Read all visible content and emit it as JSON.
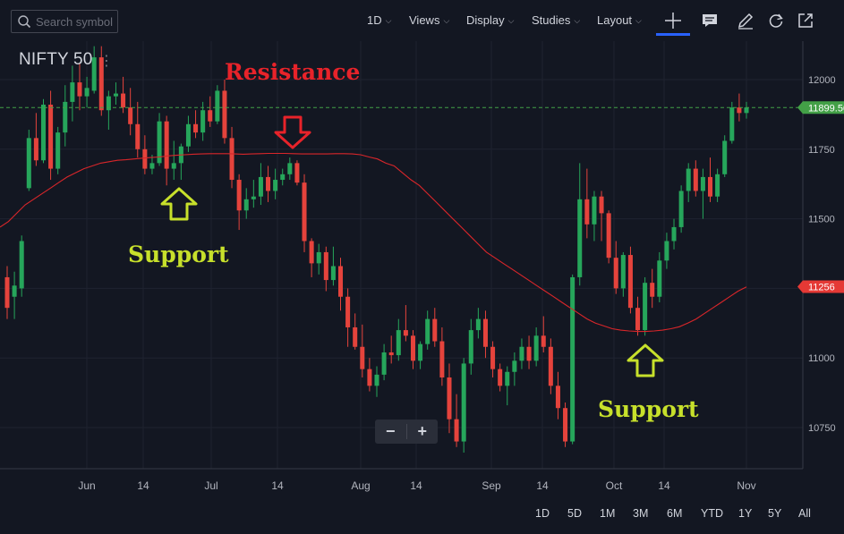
{
  "toolbar": {
    "search_placeholder": "Search symbol",
    "interval": "1D",
    "views": "Views",
    "display": "Display",
    "studies": "Studies",
    "layout": "Layout"
  },
  "icons": [
    "search-icon",
    "crosshair-icon",
    "comment-icon",
    "pencil-icon",
    "refresh-icon",
    "popout-icon",
    "chevron-down-icon"
  ],
  "colors": {
    "up": "#26a65b",
    "down": "#e5433c",
    "ma": "#d9262a",
    "price_tag": "#43a047",
    "ma_tag": "#e53935",
    "support": "#c7e02b",
    "resistance": "#e8232a"
  },
  "annotations": {
    "resistance": "Resistance",
    "support_1": "Support",
    "support_2": "Support"
  },
  "zoom": {
    "minus": "−",
    "plus": "+"
  },
  "ranges": [
    "1D",
    "5D",
    "1M",
    "3M",
    "6M",
    "YTD",
    "1Y",
    "5Y",
    "All"
  ],
  "chart_data": {
    "type": "candlestick",
    "symbol": "NIFTY 50",
    "y_ticks": [
      12000,
      11750,
      11500,
      11250,
      11000,
      10750
    ],
    "ylim": [
      10610,
      12140
    ],
    "x_ticks": [
      "Jun",
      "14",
      "Jul",
      "14",
      "Aug",
      "14",
      "Sep",
      "14",
      "Oct",
      "14",
      "Nov"
    ],
    "last_price": "11899.50",
    "last_price_value": 11899.5,
    "ma_value_label": "11256",
    "ma_value": 11256,
    "grid": true,
    "candles": [
      [
        11290,
        11330,
        11140,
        11180
      ],
      [
        11220,
        11310,
        11140,
        11260
      ],
      [
        11250,
        11440,
        11220,
        11420
      ],
      [
        11610,
        11820,
        11600,
        11790
      ],
      [
        11790,
        11880,
        11690,
        11710
      ],
      [
        11710,
        11930,
        11700,
        11910
      ],
      [
        11910,
        11960,
        11640,
        11680
      ],
      [
        11680,
        11830,
        11660,
        11810
      ],
      [
        11810,
        11980,
        11760,
        11920
      ],
      [
        11920,
        12050,
        11850,
        11990
      ],
      [
        11990,
        12060,
        11890,
        11940
      ],
      [
        11940,
        12010,
        11900,
        11970
      ],
      [
        11960,
        12120,
        11950,
        12080
      ],
      [
        12080,
        12120,
        11870,
        11890
      ],
      [
        11890,
        11960,
        11820,
        11940
      ],
      [
        11940,
        11990,
        11910,
        11950
      ],
      [
        11950,
        12010,
        11880,
        11900
      ],
      [
        11900,
        11970,
        11800,
        11840
      ],
      [
        11840,
        11920,
        11720,
        11750
      ],
      [
        11750,
        11800,
        11660,
        11680
      ],
      [
        11680,
        11730,
        11660,
        11700
      ],
      [
        11700,
        11880,
        11690,
        11850
      ],
      [
        11850,
        11870,
        11620,
        11680
      ],
      [
        11680,
        11780,
        11640,
        11700
      ],
      [
        11700,
        11770,
        11640,
        11760
      ],
      [
        11760,
        11870,
        11740,
        11840
      ],
      [
        11840,
        11890,
        11790,
        11810
      ],
      [
        11810,
        11920,
        11780,
        11890
      ],
      [
        11890,
        11940,
        11830,
        11850
      ],
      [
        11850,
        11980,
        11840,
        11960
      ],
      [
        11960,
        12000,
        11770,
        11790
      ],
      [
        11790,
        11830,
        11610,
        11640
      ],
      [
        11640,
        11660,
        11460,
        11530
      ],
      [
        11530,
        11610,
        11500,
        11570
      ],
      [
        11570,
        11640,
        11540,
        11580
      ],
      [
        11580,
        11700,
        11550,
        11650
      ],
      [
        11650,
        11690,
        11560,
        11600
      ],
      [
        11600,
        11680,
        11570,
        11640
      ],
      [
        11640,
        11680,
        11620,
        11660
      ],
      [
        11660,
        11720,
        11640,
        11700
      ],
      [
        11700,
        11710,
        11620,
        11630
      ],
      [
        11630,
        11660,
        11380,
        11420
      ],
      [
        11420,
        11430,
        11290,
        11340
      ],
      [
        11340,
        11410,
        11300,
        11380
      ],
      [
        11380,
        11400,
        11240,
        11280
      ],
      [
        11280,
        11400,
        11260,
        11330
      ],
      [
        11330,
        11360,
        11170,
        11220
      ],
      [
        11220,
        11250,
        11040,
        11110
      ],
      [
        11110,
        11160,
        11030,
        11040
      ],
      [
        11040,
        11120,
        10930,
        10960
      ],
      [
        10960,
        11000,
        10880,
        10900
      ],
      [
        10900,
        10970,
        10860,
        10940
      ],
      [
        10940,
        11050,
        10920,
        11020
      ],
      [
        11020,
        11080,
        10980,
        11010
      ],
      [
        11010,
        11140,
        10990,
        11100
      ],
      [
        11100,
        11190,
        11060,
        11080
      ],
      [
        11080,
        11100,
        10960,
        10990
      ],
      [
        10990,
        11060,
        10960,
        11050
      ],
      [
        11050,
        11170,
        11030,
        11140
      ],
      [
        11140,
        11180,
        11040,
        11060
      ],
      [
        11060,
        11110,
        10900,
        10930
      ],
      [
        10930,
        10980,
        10730,
        10780
      ],
      [
        10780,
        10870,
        10680,
        10700
      ],
      [
        10700,
        11000,
        10660,
        10980
      ],
      [
        10980,
        11140,
        10940,
        11100
      ],
      [
        11100,
        11180,
        11070,
        11140
      ],
      [
        11140,
        11170,
        11000,
        11040
      ],
      [
        11040,
        11060,
        10930,
        10960
      ],
      [
        10960,
        10980,
        10880,
        10900
      ],
      [
        10900,
        10970,
        10830,
        10950
      ],
      [
        10950,
        11020,
        10900,
        10990
      ],
      [
        10990,
        11070,
        10960,
        11040
      ],
      [
        11040,
        11080,
        10960,
        10990
      ],
      [
        10990,
        11110,
        10970,
        11080
      ],
      [
        11080,
        11150,
        11020,
        11040
      ],
      [
        11040,
        11070,
        10870,
        10900
      ],
      [
        10900,
        10950,
        10780,
        10820
      ],
      [
        10820,
        10840,
        10680,
        10700
      ],
      [
        10700,
        11300,
        10690,
        11290
      ],
      [
        11290,
        11700,
        11260,
        11570
      ],
      [
        11570,
        11680,
        11430,
        11480
      ],
      [
        11480,
        11600,
        11420,
        11580
      ],
      [
        11580,
        11600,
        11420,
        11520
      ],
      [
        11520,
        11530,
        11340,
        11360
      ],
      [
        11360,
        11420,
        11230,
        11250
      ],
      [
        11250,
        11380,
        11220,
        11370
      ],
      [
        11370,
        11400,
        11160,
        11180
      ],
      [
        11180,
        11220,
        11080,
        11100
      ],
      [
        11100,
        11290,
        11080,
        11270
      ],
      [
        11270,
        11320,
        11180,
        11220
      ],
      [
        11220,
        11380,
        11200,
        11350
      ],
      [
        11350,
        11450,
        11320,
        11420
      ],
      [
        11420,
        11500,
        11390,
        11470
      ],
      [
        11470,
        11620,
        11450,
        11600
      ],
      [
        11600,
        11700,
        11560,
        11680
      ],
      [
        11680,
        11710,
        11580,
        11600
      ],
      [
        11600,
        11680,
        11500,
        11650
      ],
      [
        11650,
        11720,
        11560,
        11580
      ],
      [
        11580,
        11680,
        11560,
        11660
      ],
      [
        11660,
        11800,
        11650,
        11780
      ],
      [
        11780,
        11920,
        11770,
        11900
      ],
      [
        11900,
        11950,
        11850,
        11880
      ],
      [
        11880,
        11920,
        11860,
        11900
      ]
    ],
    "ma": [
      11470,
      11490,
      11520,
      11550,
      11570,
      11590,
      11610,
      11630,
      11650,
      11665,
      11680,
      11690,
      11700,
      11705,
      11710,
      11712,
      11715,
      11718,
      11720,
      11722,
      11726,
      11728,
      11730,
      11732,
      11733,
      11734,
      11734,
      11734,
      11733,
      11732,
      11733,
      11734,
      11735,
      11735,
      11735,
      11734,
      11733,
      11733,
      11733,
      11733,
      11734,
      11734,
      11733,
      11730,
      11722,
      11715,
      11700,
      11690,
      11665,
      11640,
      11620,
      11590,
      11560,
      11530,
      11500,
      11470,
      11440,
      11410,
      11380,
      11360,
      11340,
      11320,
      11300,
      11280,
      11260,
      11240,
      11220,
      11200,
      11180,
      11160,
      11140,
      11125,
      11115,
      11105,
      11100,
      11097,
      11095,
      11095,
      11097,
      11100,
      11105,
      11112,
      11125,
      11140,
      11160,
      11180,
      11200,
      11220,
      11240,
      11255
    ]
  }
}
